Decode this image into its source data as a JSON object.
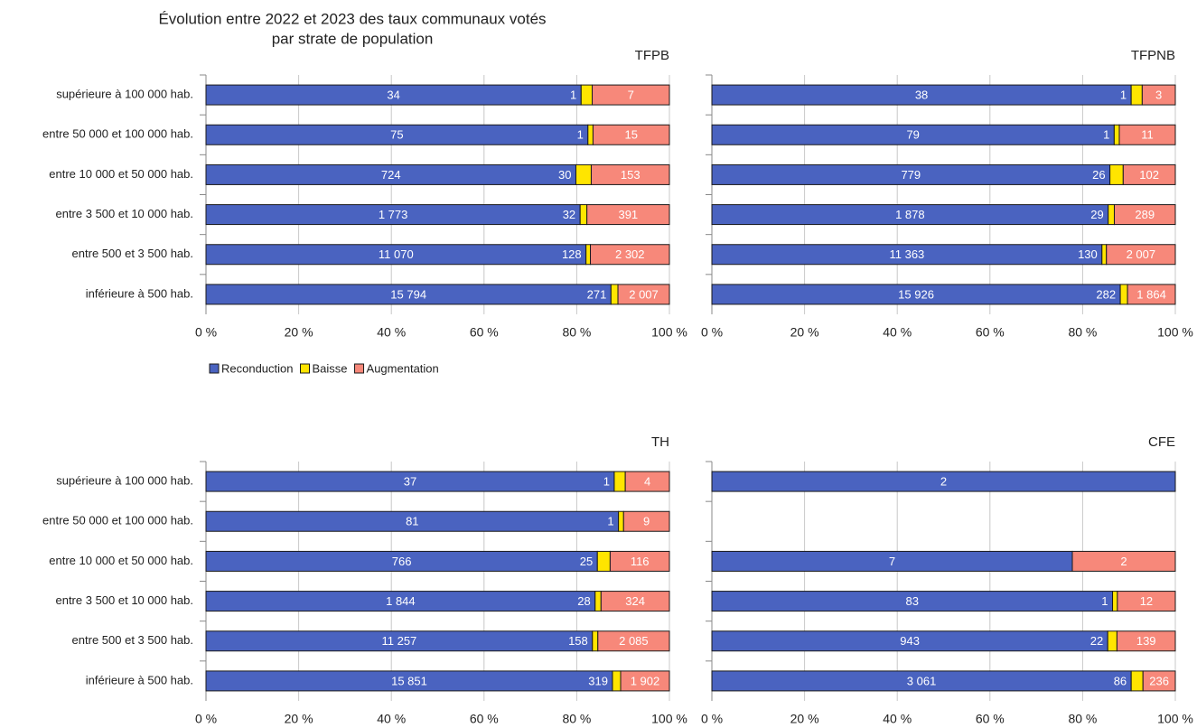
{
  "title": [
    "Évolution entre 2022 et 2023 des taux communaux votés",
    "par strate de population"
  ],
  "chart_data": [
    {
      "type": "bar",
      "orientation": "horizontal",
      "stacked": "percent",
      "title": "TFPB",
      "legend": "bottom",
      "categories": [
        "supérieure à 100 000 hab.",
        "entre 50 000 et 100 000 hab.",
        "entre 10 000 et 50 000 hab.",
        "entre 3 500 et 10 000 hab.",
        "entre 500 et 3 500 hab.",
        "inférieure à 500 hab."
      ],
      "series": [
        {
          "name": "Reconduction",
          "color": "#4a63c0",
          "values": [
            34,
            75,
            724,
            1773,
            11070,
            15794
          ],
          "value_labels": [
            "34",
            "75",
            "724",
            "1 773",
            "11 070",
            "15 794"
          ]
        },
        {
          "name": "Baisse",
          "color": "#ffe500",
          "values": [
            1,
            1,
            30,
            32,
            128,
            271
          ],
          "value_labels": [
            "1",
            "1",
            "30",
            "32",
            "128",
            "271"
          ]
        },
        {
          "name": "Augmentation",
          "color": "#f7887a",
          "values": [
            7,
            15,
            153,
            391,
            2302,
            2007
          ],
          "value_labels": [
            "7",
            "15",
            "153",
            "391",
            "2 302",
            "2 007"
          ]
        }
      ],
      "xlim": [
        0,
        100
      ],
      "xticks": [
        {
          "value": 0,
          "label": "0 %"
        },
        {
          "value": 20,
          "label": "20 %"
        },
        {
          "value": 40,
          "label": "40 %"
        },
        {
          "value": 60,
          "label": "60 %"
        },
        {
          "value": 80,
          "label": "80 %"
        },
        {
          "value": 100,
          "label": "100 %"
        }
      ],
      "grid": true
    },
    {
      "type": "bar",
      "orientation": "horizontal",
      "stacked": "percent",
      "title": "TFPNB",
      "series": [
        {
          "color": "#4a63c0",
          "values": [
            38,
            79,
            779,
            1878,
            11363,
            15926
          ],
          "value_labels": [
            "38",
            "79",
            "779",
            "1 878",
            "11 363",
            "15 926"
          ]
        },
        {
          "color": "#ffe500",
          "values": [
            1,
            1,
            26,
            29,
            130,
            282
          ],
          "value_labels": [
            "1",
            "1",
            "26",
            "29",
            "130",
            "282"
          ]
        },
        {
          "color": "#f7887a",
          "values": [
            3,
            11,
            102,
            289,
            2007,
            1864
          ],
          "value_labels": [
            "3",
            "11",
            "102",
            "289",
            "2 007",
            "1 864"
          ]
        }
      ],
      "xlim": [
        0,
        100
      ],
      "xticks": [
        {
          "value": 0,
          "label": "0 %"
        },
        {
          "value": 20,
          "label": "20 %"
        },
        {
          "value": 40,
          "label": "40 %"
        },
        {
          "value": 60,
          "label": "60 %"
        },
        {
          "value": 80,
          "label": "80 %"
        },
        {
          "value": 100,
          "label": "100 %"
        }
      ],
      "grid": true
    },
    {
      "type": "bar",
      "orientation": "horizontal",
      "stacked": "percent",
      "title": "TH",
      "categories": [
        "supérieure à 100 000 hab.",
        "entre 50 000 et 100 000 hab.",
        "entre 10 000 et 50 000 hab.",
        "entre 3 500 et 10 000 hab.",
        "entre 500 et 3 500 hab.",
        "inférieure à 500 hab."
      ],
      "series": [
        {
          "color": "#4a63c0",
          "values": [
            37,
            81,
            766,
            1844,
            11257,
            15851
          ],
          "value_labels": [
            "37",
            "81",
            "766",
            "1 844",
            "11 257",
            "15 851"
          ]
        },
        {
          "color": "#ffe500",
          "values": [
            1,
            1,
            25,
            28,
            158,
            319
          ],
          "value_labels": [
            "1",
            "1",
            "25",
            "28",
            "158",
            "319"
          ]
        },
        {
          "color": "#f7887a",
          "values": [
            4,
            9,
            116,
            324,
            2085,
            1902
          ],
          "value_labels": [
            "4",
            "9",
            "116",
            "324",
            "2 085",
            "1 902"
          ]
        }
      ],
      "xlim": [
        0,
        100
      ],
      "xticks": [
        {
          "value": 0,
          "label": "0 %"
        },
        {
          "value": 20,
          "label": "20 %"
        },
        {
          "value": 40,
          "label": "40 %"
        },
        {
          "value": 60,
          "label": "60 %"
        },
        {
          "value": 80,
          "label": "80 %"
        },
        {
          "value": 100,
          "label": "100 %"
        }
      ],
      "grid": true
    },
    {
      "type": "bar",
      "orientation": "horizontal",
      "stacked": "percent",
      "title": "CFE",
      "series": [
        {
          "color": "#4a63c0",
          "values": [
            2,
            null,
            7,
            83,
            943,
            3061
          ],
          "value_labels": [
            "2",
            null,
            "7",
            "83",
            "943",
            "3 061"
          ]
        },
        {
          "color": "#ffe500",
          "values": [
            null,
            null,
            null,
            1,
            22,
            86
          ],
          "value_labels": [
            null,
            null,
            null,
            "1",
            "22",
            "86"
          ]
        },
        {
          "color": "#f7887a",
          "values": [
            null,
            null,
            2,
            12,
            139,
            236
          ],
          "value_labels": [
            null,
            null,
            "2",
            "12",
            "139",
            "236"
          ]
        }
      ],
      "xlim": [
        0,
        100
      ],
      "xticks": [
        {
          "value": 0,
          "label": "0 %"
        },
        {
          "value": 20,
          "label": "20 %"
        },
        {
          "value": 40,
          "label": "40 %"
        },
        {
          "value": 60,
          "label": "60 %"
        },
        {
          "value": 80,
          "label": "80 %"
        },
        {
          "value": 100,
          "label": "100 %"
        }
      ],
      "grid": true
    }
  ]
}
